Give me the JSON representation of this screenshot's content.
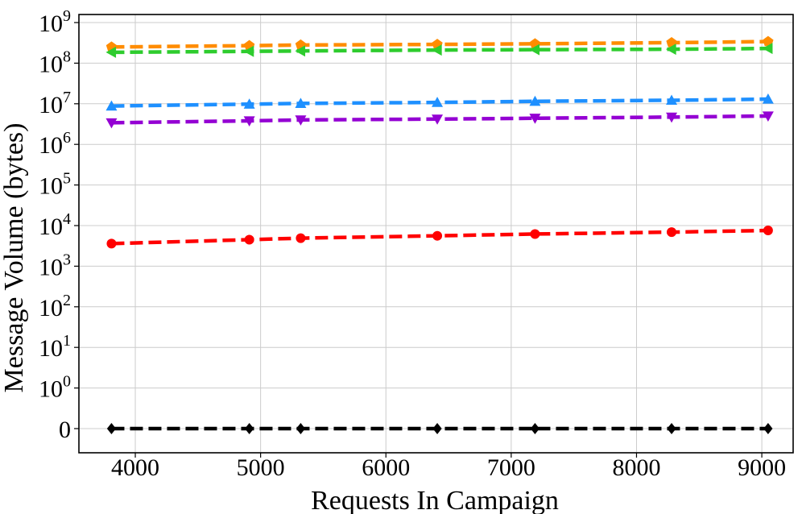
{
  "chart_data": {
    "type": "line",
    "title": "",
    "xlabel": "Requests In Campaign",
    "ylabel": "Message Volume (bytes)",
    "xscale": "linear",
    "yscale": "symlog",
    "xlim": [
      3550,
      9250
    ],
    "xticks": [
      "4000",
      "5000",
      "6000",
      "7000",
      "8000",
      "9000"
    ],
    "yticks": [
      {
        "base": "0",
        "exp": ""
      },
      {
        "base": "10",
        "exp": "0"
      },
      {
        "base": "10",
        "exp": "1"
      },
      {
        "base": "10",
        "exp": "2"
      },
      {
        "base": "10",
        "exp": "3"
      },
      {
        "base": "10",
        "exp": "4"
      },
      {
        "base": "10",
        "exp": "5"
      },
      {
        "base": "10",
        "exp": "6"
      },
      {
        "base": "10",
        "exp": "7"
      },
      {
        "base": "10",
        "exp": "8"
      },
      {
        "base": "10",
        "exp": "9"
      }
    ],
    "grid": true,
    "legend": "none",
    "x": [
      3810,
      4910,
      5320,
      6410,
      7190,
      8280,
      9050
    ],
    "series": [
      {
        "color": "#ff8c00",
        "marker": "pentagon",
        "style": "dashed",
        "values": [
          250000000.0,
          270000000.0,
          280000000.0,
          290000000.0,
          300000000.0,
          320000000.0,
          340000000.0
        ]
      },
      {
        "color": "#2ecc2e",
        "marker": "triangle-left",
        "style": "dashed",
        "values": [
          185000000.0,
          195000000.0,
          200000000.0,
          210000000.0,
          215000000.0,
          220000000.0,
          230000000.0
        ]
      },
      {
        "color": "#1e90ff",
        "marker": "triangle-up",
        "style": "dashed",
        "values": [
          8800000.0,
          9800000.0,
          10200000.0,
          10800000.0,
          11500000.0,
          12200000.0,
          13000000.0
        ]
      },
      {
        "color": "#9400d3",
        "marker": "triangle-down",
        "style": "dashed",
        "values": [
          3400000.0,
          3800000.0,
          4000000.0,
          4200000.0,
          4400000.0,
          4700000.0,
          5000000.0
        ]
      },
      {
        "color": "#ff0000",
        "marker": "circle",
        "style": "dashed",
        "values": [
          3600,
          4500,
          4900,
          5600,
          6200,
          6900,
          7600
        ]
      },
      {
        "color": "#000000",
        "marker": "diamond",
        "style": "dashed",
        "values": [
          0,
          0,
          0,
          0,
          0,
          0,
          0
        ]
      }
    ]
  }
}
